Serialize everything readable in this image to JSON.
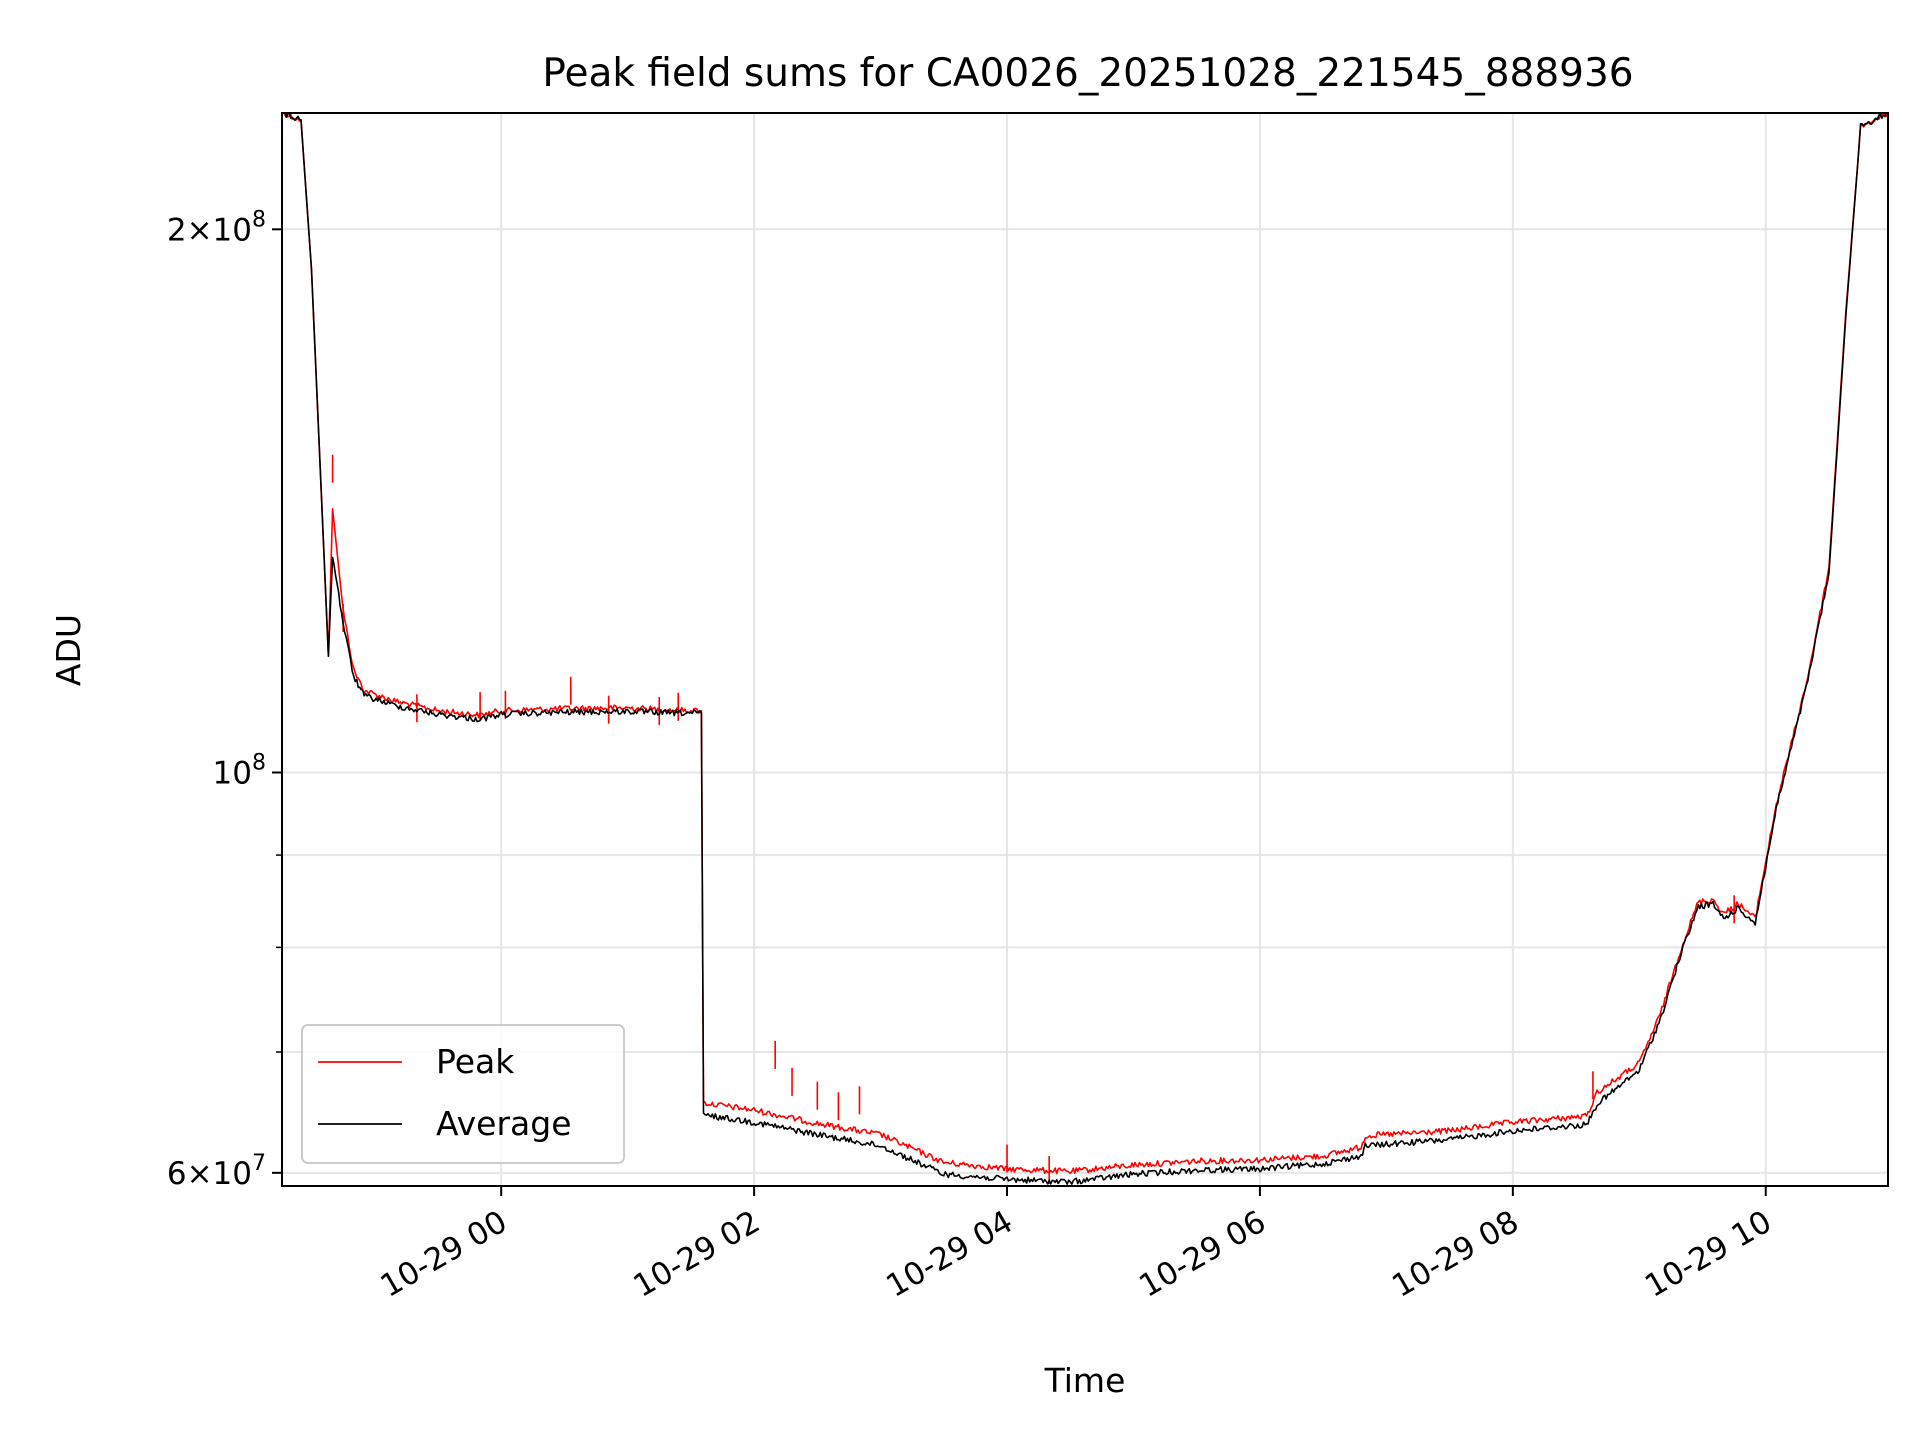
{
  "chart_data": {
    "type": "line",
    "title": "Peak field sums for CA0026_20251028_221545_888936",
    "xlabel": "Time",
    "ylabel": "ADU",
    "yscale": "log",
    "ylim": [
      59000000,
      232000000
    ],
    "xlim": [
      "2025-10-28 22:16",
      "2025-10-29 10:58"
    ],
    "grid": true,
    "legend": {
      "position": "lower-left"
    },
    "x_ticks": [
      {
        "t": "2025-10-29 00:00",
        "label": "10-29 00"
      },
      {
        "t": "2025-10-29 02:00",
        "label": "10-29 02"
      },
      {
        "t": "2025-10-29 04:00",
        "label": "10-29 04"
      },
      {
        "t": "2025-10-29 06:00",
        "label": "10-29 06"
      },
      {
        "t": "2025-10-29 08:00",
        "label": "10-29 08"
      },
      {
        "t": "2025-10-29 10:00",
        "label": "10-29 10"
      }
    ],
    "y_ticks_major": [
      {
        "value": 60000000,
        "label_base": "6×10",
        "label_exp": "7"
      },
      {
        "value": 100000000,
        "label_base": "10",
        "label_exp": "8"
      },
      {
        "value": 200000000,
        "label_base": "2×10",
        "label_exp": "8"
      }
    ],
    "y_ticks_minor": [
      70000000,
      80000000,
      90000000
    ],
    "series": [
      {
        "name": "Peak",
        "color": "#ff0000",
        "points": [
          [
            "2025-10-28 22:16",
            232000000
          ],
          [
            "2025-10-28 22:25",
            230000000
          ],
          [
            "2025-10-28 22:30",
            190000000
          ],
          [
            "2025-10-28 22:35",
            140000000
          ],
          [
            "2025-10-28 22:38",
            116000000
          ],
          [
            "2025-10-28 22:40",
            140000000
          ],
          [
            "2025-10-28 22:45",
            123000000
          ],
          [
            "2025-10-28 22:50",
            114000000
          ],
          [
            "2025-10-28 22:55",
            111000000
          ],
          [
            "2025-10-28 23:10",
            109500000
          ],
          [
            "2025-10-28 23:30",
            108200000
          ],
          [
            "2025-10-28 23:50",
            107600000
          ],
          [
            "2025-10-29 00:00",
            108200000
          ],
          [
            "2025-10-29 00:30",
            108500000
          ],
          [
            "2025-10-29 01:00",
            108600000
          ],
          [
            "2025-10-29 01:20",
            108300000
          ],
          [
            "2025-10-29 01:35",
            108200000
          ],
          [
            "2025-10-29 01:36",
            65600000
          ],
          [
            "2025-10-29 02:00",
            65000000
          ],
          [
            "2025-10-29 02:30",
            63900000
          ],
          [
            "2025-10-29 03:00",
            63000000
          ],
          [
            "2025-10-29 03:30",
            60800000
          ],
          [
            "2025-10-29 04:00",
            60300000
          ],
          [
            "2025-10-29 04:30",
            60100000
          ],
          [
            "2025-10-29 05:00",
            60600000
          ],
          [
            "2025-10-29 05:30",
            60900000
          ],
          [
            "2025-10-29 06:00",
            61000000
          ],
          [
            "2025-10-29 06:30",
            61300000
          ],
          [
            "2025-10-29 06:48",
            62000000
          ],
          [
            "2025-10-29 06:50",
            62900000
          ],
          [
            "2025-10-29 07:30",
            63300000
          ],
          [
            "2025-10-29 08:00",
            64000000
          ],
          [
            "2025-10-29 08:35",
            64500000
          ],
          [
            "2025-10-29 08:40",
            66500000
          ],
          [
            "2025-10-29 09:00",
            69000000
          ],
          [
            "2025-10-29 09:10",
            73500000
          ],
          [
            "2025-10-29 09:20",
            80000000
          ],
          [
            "2025-10-29 09:28",
            84800000
          ],
          [
            "2025-10-29 09:35",
            85000000
          ],
          [
            "2025-10-29 09:40",
            83500000
          ],
          [
            "2025-10-29 09:47",
            84600000
          ],
          [
            "2025-10-29 09:55",
            83000000
          ],
          [
            "2025-10-29 10:05",
            96000000
          ],
          [
            "2025-10-29 10:20",
            113000000
          ],
          [
            "2025-10-29 10:30",
            130000000
          ],
          [
            "2025-10-29 10:38",
            180000000
          ],
          [
            "2025-10-29 10:45",
            228000000
          ],
          [
            "2025-10-29 10:58",
            232000000
          ]
        ],
        "spikes": [
          [
            "2025-10-28 22:40",
            150000000
          ],
          [
            "2025-10-28 22:45",
            124000000
          ],
          [
            "2025-10-28 23:20",
            110500000
          ],
          [
            "2025-10-28 23:50",
            110800000
          ],
          [
            "2025-10-29 00:02",
            111000000
          ],
          [
            "2025-10-29 00:33",
            113000000
          ],
          [
            "2025-10-29 00:51",
            110300000
          ],
          [
            "2025-10-29 01:15",
            110100000
          ],
          [
            "2025-10-29 01:24",
            110700000
          ],
          [
            "2025-10-29 02:10",
            71000000
          ],
          [
            "2025-10-29 02:18",
            68600000
          ],
          [
            "2025-10-29 02:30",
            67400000
          ],
          [
            "2025-10-29 02:40",
            66500000
          ],
          [
            "2025-10-29 02:50",
            67000000
          ],
          [
            "2025-10-29 04:00",
            62200000
          ],
          [
            "2025-10-29 04:20",
            61300000
          ],
          [
            "2025-10-29 08:38",
            68300000
          ],
          [
            "2025-10-29 09:45",
            85500000
          ]
        ]
      },
      {
        "name": "Average",
        "color": "#000000",
        "points": [
          [
            "2025-10-28 22:16",
            232000000
          ],
          [
            "2025-10-28 22:25",
            230000000
          ],
          [
            "2025-10-28 22:30",
            190000000
          ],
          [
            "2025-10-28 22:35",
            140000000
          ],
          [
            "2025-10-28 22:38",
            116000000
          ],
          [
            "2025-10-28 22:40",
            132000000
          ],
          [
            "2025-10-28 22:45",
            121000000
          ],
          [
            "2025-10-28 22:50",
            113000000
          ],
          [
            "2025-10-28 22:55",
            110300000
          ],
          [
            "2025-10-28 23:10",
            108900000
          ],
          [
            "2025-10-28 23:30",
            107700000
          ],
          [
            "2025-10-28 23:50",
            107000000
          ],
          [
            "2025-10-29 00:00",
            107700000
          ],
          [
            "2025-10-29 00:30",
            108000000
          ],
          [
            "2025-10-29 01:00",
            108100000
          ],
          [
            "2025-10-29 01:20",
            107900000
          ],
          [
            "2025-10-29 01:35",
            107900000
          ],
          [
            "2025-10-29 01:36",
            64600000
          ],
          [
            "2025-10-29 02:00",
            64000000
          ],
          [
            "2025-10-29 02:30",
            63000000
          ],
          [
            "2025-10-29 03:00",
            62100000
          ],
          [
            "2025-10-29 03:30",
            59900000
          ],
          [
            "2025-10-29 04:00",
            59500000
          ],
          [
            "2025-10-29 04:30",
            59300000
          ],
          [
            "2025-10-29 05:00",
            59900000
          ],
          [
            "2025-10-29 05:30",
            60200000
          ],
          [
            "2025-10-29 06:00",
            60300000
          ],
          [
            "2025-10-29 06:30",
            60700000
          ],
          [
            "2025-10-29 06:48",
            61300000
          ],
          [
            "2025-10-29 06:50",
            62100000
          ],
          [
            "2025-10-29 07:30",
            62600000
          ],
          [
            "2025-10-29 08:00",
            63300000
          ],
          [
            "2025-10-29 08:35",
            63800000
          ],
          [
            "2025-10-29 08:40",
            65500000
          ],
          [
            "2025-10-29 09:00",
            68400000
          ],
          [
            "2025-10-29 09:10",
            73000000
          ],
          [
            "2025-10-29 09:20",
            79500000
          ],
          [
            "2025-10-29 09:28",
            84300000
          ],
          [
            "2025-10-29 09:35",
            84500000
          ],
          [
            "2025-10-29 09:40",
            83000000
          ],
          [
            "2025-10-29 09:47",
            84100000
          ],
          [
            "2025-10-29 09:55",
            82500000
          ],
          [
            "2025-10-29 10:05",
            95500000
          ],
          [
            "2025-10-29 10:20",
            112500000
          ],
          [
            "2025-10-29 10:30",
            129000000
          ],
          [
            "2025-10-29 10:38",
            179000000
          ],
          [
            "2025-10-29 10:45",
            228000000
          ],
          [
            "2025-10-29 10:58",
            232000000
          ]
        ],
        "spikes": []
      }
    ]
  }
}
